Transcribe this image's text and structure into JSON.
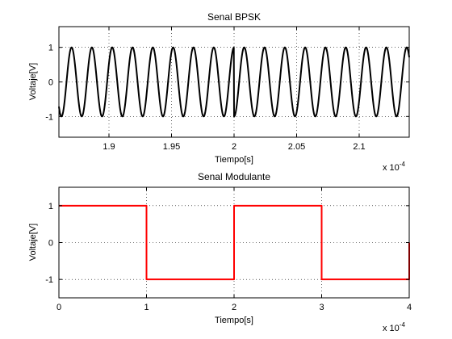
{
  "chart_data": [
    {
      "type": "line",
      "title": "Senal BPSK",
      "xlabel": "Tiempo[s]",
      "ylabel": "Voltaje[V]",
      "x_multiplier_label": "x 10",
      "x_multiplier_exp": "-4",
      "xlim": [
        1.86,
        2.14
      ],
      "ylim": [
        -1.6,
        1.6
      ],
      "xticks": [
        1.9,
        1.95,
        2.0,
        2.05,
        2.1
      ],
      "xtick_labels": [
        "1.9",
        "1.95",
        "2",
        "2.05",
        "2.1"
      ],
      "yticks": [
        -1,
        0,
        1
      ],
      "ytick_labels": [
        "-1",
        "0",
        "1"
      ],
      "grid": true,
      "series": [
        {
          "color": "#000000",
          "function": "cos",
          "frequency_per_unit": 61.6,
          "phase_reference": 2.0,
          "phase_flip_at": [
            2.0
          ]
        }
      ]
    },
    {
      "type": "line",
      "title": "Senal Modulante",
      "xlabel": "Tiempo[s]",
      "ylabel": "Voltaje[V]",
      "x_multiplier_label": "x 10",
      "x_multiplier_exp": "-4",
      "xlim": [
        0,
        4
      ],
      "ylim": [
        -1.5,
        1.5
      ],
      "xticks": [
        0,
        1,
        2,
        3,
        4
      ],
      "xtick_labels": [
        "0",
        "1",
        "2",
        "3",
        "4"
      ],
      "yticks": [
        -1,
        0,
        1
      ],
      "ytick_labels": [
        "-1",
        "0",
        "1"
      ],
      "grid": true,
      "series": [
        {
          "color": "#ff0000",
          "x": [
            0,
            1,
            1,
            2,
            2,
            3,
            3,
            4,
            4
          ],
          "y": [
            1,
            1,
            -1,
            -1,
            1,
            1,
            -1,
            -1,
            0
          ]
        }
      ]
    }
  ]
}
